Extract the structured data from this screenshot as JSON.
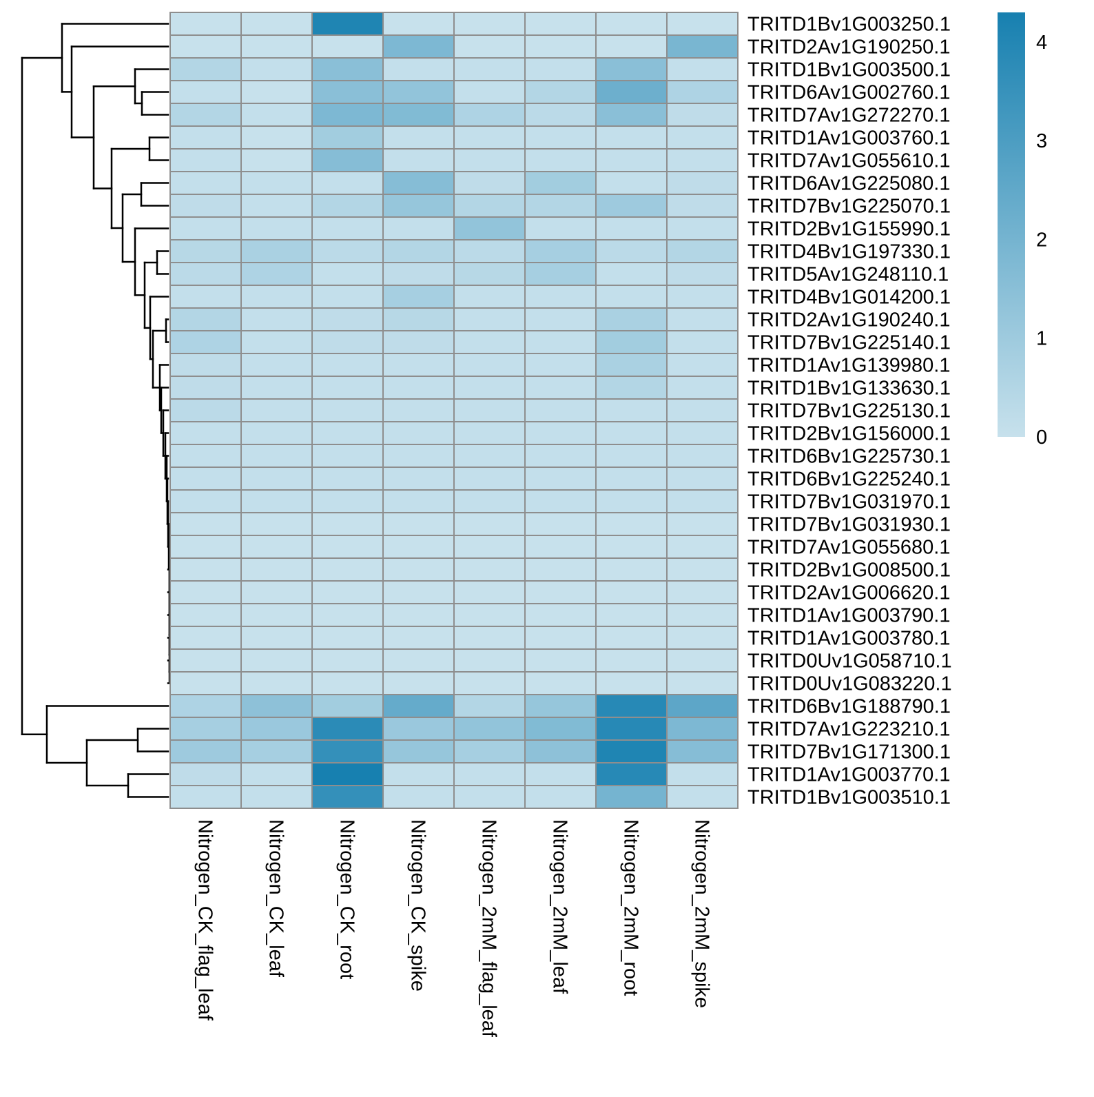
{
  "chart_data": {
    "type": "heatmap",
    "title": "",
    "columns": [
      "Nitrogen_CK_flag_leaf",
      "Nitrogen_CK_leaf",
      "Nitrogen_CK_root",
      "Nitrogen_CK_spike",
      "Nitrogen_2mM_flag_leaf",
      "Nitrogen_2mM_leaf",
      "Nitrogen_2mM_root",
      "Nitrogen_2mM_spike"
    ],
    "rows": [
      "TRITD1Bv1G003250.1",
      "TRITD2Av1G190250.1",
      "TRITD1Bv1G003500.1",
      "TRITD6Av1G002760.1",
      "TRITD7Av1G272270.1",
      "TRITD1Av1G003760.1",
      "TRITD7Av1G055610.1",
      "TRITD6Av1G225080.1",
      "TRITD7Bv1G225070.1",
      "TRITD2Bv1G155990.1",
      "TRITD4Bv1G197330.1",
      "TRITD5Av1G248110.1",
      "TRITD4Bv1G014200.1",
      "TRITD2Av1G190240.1",
      "TRITD7Bv1G225140.1",
      "TRITD1Av1G139980.1",
      "TRITD1Bv1G133630.1",
      "TRITD7Bv1G225130.1",
      "TRITD2Bv1G156000.1",
      "TRITD6Bv1G225730.1",
      "TRITD6Bv1G225240.1",
      "TRITD7Bv1G031970.1",
      "TRITD7Bv1G031930.1",
      "TRITD7Av1G055680.1",
      "TRITD2Bv1G008500.1",
      "TRITD2Av1G006620.1",
      "TRITD1Av1G003790.1",
      "TRITD1Av1G003780.1",
      "TRITD0Uv1G058710.1",
      "TRITD0Uv1G083220.1",
      "TRITD6Bv1G188790.1",
      "TRITD7Av1G223210.1",
      "TRITD7Bv1G171300.1",
      "TRITD1Av1G003770.1",
      "TRITD1Bv1G003510.1"
    ],
    "values": [
      [
        0.0,
        0.0,
        4.1,
        0.0,
        0.0,
        0.0,
        0.0,
        0.0
      ],
      [
        0.0,
        0.0,
        0.0,
        1.8,
        0.0,
        0.0,
        0.0,
        1.9
      ],
      [
        0.5,
        0.1,
        1.5,
        0.1,
        0.1,
        0.1,
        1.5,
        0.1
      ],
      [
        0.1,
        0.0,
        1.5,
        1.3,
        0.1,
        0.5,
        2.2,
        0.6
      ],
      [
        0.5,
        0.1,
        1.8,
        1.7,
        0.6,
        0.3,
        1.5,
        0.2
      ],
      [
        0.1,
        0.0,
        0.9,
        0.1,
        0.1,
        0.1,
        0.1,
        0.1
      ],
      [
        0.1,
        0.0,
        1.6,
        0.1,
        0.1,
        0.1,
        0.1,
        0.1
      ],
      [
        0.1,
        0.1,
        0.1,
        1.6,
        0.2,
        0.9,
        0.1,
        0.2
      ],
      [
        0.2,
        0.1,
        0.5,
        1.2,
        0.5,
        0.5,
        1.0,
        0.2
      ],
      [
        0.1,
        0.1,
        0.1,
        0.1,
        1.3,
        0.1,
        0.1,
        0.1
      ],
      [
        0.4,
        0.7,
        0.3,
        0.5,
        0.3,
        0.8,
        0.3,
        0.5
      ],
      [
        0.3,
        0.6,
        0.1,
        0.2,
        0.4,
        0.8,
        0.1,
        0.2
      ],
      [
        0.1,
        0.1,
        0.1,
        0.8,
        0.1,
        0.1,
        0.1,
        0.1
      ],
      [
        0.5,
        0.1,
        0.2,
        0.4,
        0.1,
        0.1,
        0.7,
        0.1
      ],
      [
        0.6,
        0.1,
        0.2,
        0.2,
        0.1,
        0.1,
        0.9,
        0.1
      ],
      [
        0.2,
        0.1,
        0.1,
        0.1,
        0.1,
        0.1,
        0.7,
        0.1
      ],
      [
        0.2,
        0.1,
        0.1,
        0.1,
        0.1,
        0.1,
        0.5,
        0.1
      ],
      [
        0.3,
        0.1,
        0.1,
        0.1,
        0.1,
        0.1,
        0.1,
        0.1
      ],
      [
        0.1,
        0.1,
        0.1,
        0.1,
        0.1,
        0.1,
        0.1,
        0.1
      ],
      [
        0.1,
        0.1,
        0.1,
        0.1,
        0.1,
        0.1,
        0.1,
        0.1
      ],
      [
        0.1,
        0.1,
        0.1,
        0.1,
        0.1,
        0.1,
        0.1,
        0.1
      ],
      [
        0.1,
        0.1,
        0.1,
        0.1,
        0.1,
        0.1,
        0.1,
        0.1
      ],
      [
        0.0,
        0.0,
        0.0,
        0.0,
        0.0,
        0.0,
        0.0,
        0.0
      ],
      [
        0.0,
        0.0,
        0.0,
        0.0,
        0.0,
        0.0,
        0.0,
        0.0
      ],
      [
        0.0,
        0.0,
        0.0,
        0.0,
        0.0,
        0.0,
        0.0,
        0.0
      ],
      [
        0.0,
        0.0,
        0.0,
        0.0,
        0.0,
        0.0,
        0.0,
        0.0
      ],
      [
        0.0,
        0.0,
        0.0,
        0.0,
        0.0,
        0.0,
        0.0,
        0.0
      ],
      [
        0.0,
        0.0,
        0.0,
        0.0,
        0.0,
        0.0,
        0.0,
        0.0
      ],
      [
        0.0,
        0.0,
        0.0,
        0.0,
        0.0,
        0.0,
        0.0,
        0.0
      ],
      [
        0.0,
        0.0,
        0.0,
        0.0,
        0.0,
        0.0,
        0.0,
        0.0
      ],
      [
        0.6,
        1.4,
        0.9,
        2.4,
        0.5,
        1.2,
        3.9,
        2.6
      ],
      [
        0.8,
        1.1,
        3.8,
        1.1,
        1.3,
        1.7,
        3.9,
        1.8
      ],
      [
        1.0,
        0.8,
        3.6,
        1.2,
        0.8,
        1.4,
        4.1,
        1.6
      ],
      [
        0.2,
        0.1,
        4.3,
        0.1,
        0.1,
        0.1,
        3.9,
        0.1
      ],
      [
        0.1,
        0.1,
        3.6,
        0.1,
        0.1,
        0.1,
        2.0,
        0.1
      ]
    ],
    "color_scale": {
      "min": 0,
      "max": 4.3,
      "low_color": "#c7e1ec",
      "high_color": "#1780b0",
      "ticks": [
        0,
        1,
        2,
        3,
        4
      ]
    },
    "cell_border_color": "#8e8e8e",
    "legend_position": "right",
    "row_dendrogram": true,
    "row_labels_position": "right",
    "column_labels_position": "bottom-rotated"
  }
}
